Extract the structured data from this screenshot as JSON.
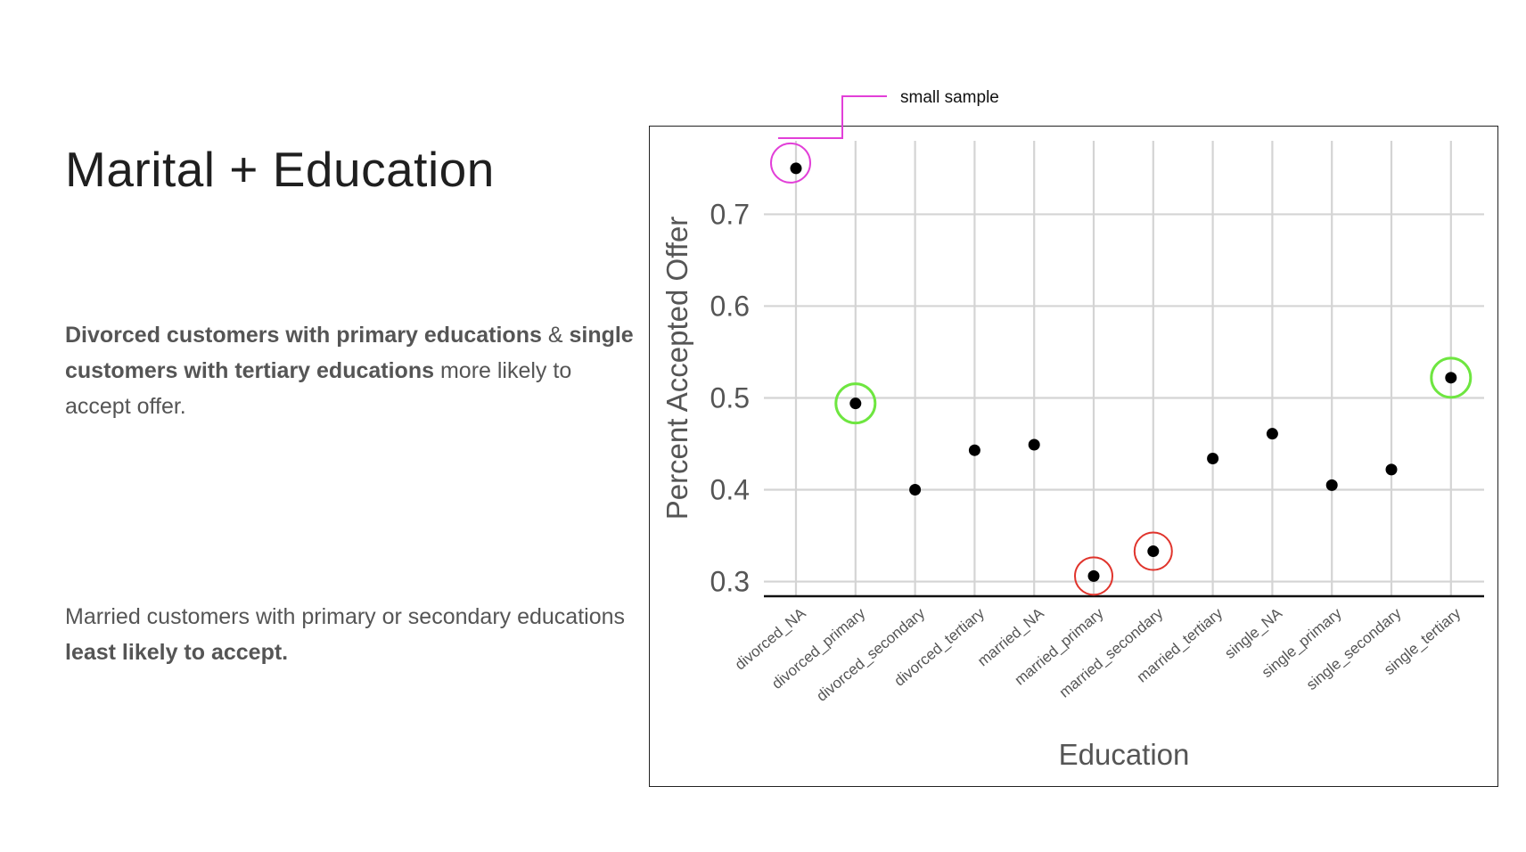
{
  "slide": {
    "title": "Marital + Education",
    "para1": {
      "b1": "Divorced customers with primary educations",
      "t1": " & ",
      "b2": "single customers with tertiary educations",
      "t2": " more likely to accept offer."
    },
    "para2": {
      "t1": "Married customers with primary or secondary educations ",
      "b1": "least likely to accept."
    }
  },
  "annotations": {
    "small_sample": "small sample"
  },
  "colors": {
    "highlight_magenta": "#e23fd8",
    "highlight_green": "#6ee640",
    "highlight_red": "#e0342c",
    "gridline": "#d4d4d4",
    "point": "#000000",
    "axis_text": "#555555"
  },
  "chart_data": {
    "type": "scatter",
    "xlabel": "Education",
    "ylabel": "Percent Accepted Offer",
    "ylim": [
      0.285,
      0.78
    ],
    "yticks": [
      0.3,
      0.4,
      0.5,
      0.6,
      0.7
    ],
    "ytick_labels": [
      "0.3",
      "0.4",
      "0.5",
      "0.6",
      "0.7"
    ],
    "grid": true,
    "categories": [
      "divorced_NA",
      "divorced_primary",
      "divorced_secondary",
      "divorced_tertiary",
      "married_NA",
      "married_primary",
      "married_secondary",
      "married_tertiary",
      "single_NA",
      "single_primary",
      "single_secondary",
      "single_tertiary"
    ],
    "values": [
      0.75,
      0.494,
      0.4,
      0.443,
      0.449,
      0.306,
      0.333,
      0.434,
      0.461,
      0.405,
      0.422,
      0.522
    ],
    "highlights": [
      {
        "category": "divorced_NA",
        "color": "magenta"
      },
      {
        "category": "divorced_primary",
        "color": "green"
      },
      {
        "category": "single_tertiary",
        "color": "green"
      },
      {
        "category": "married_primary",
        "color": "red"
      },
      {
        "category": "married_secondary",
        "color": "red"
      }
    ]
  }
}
